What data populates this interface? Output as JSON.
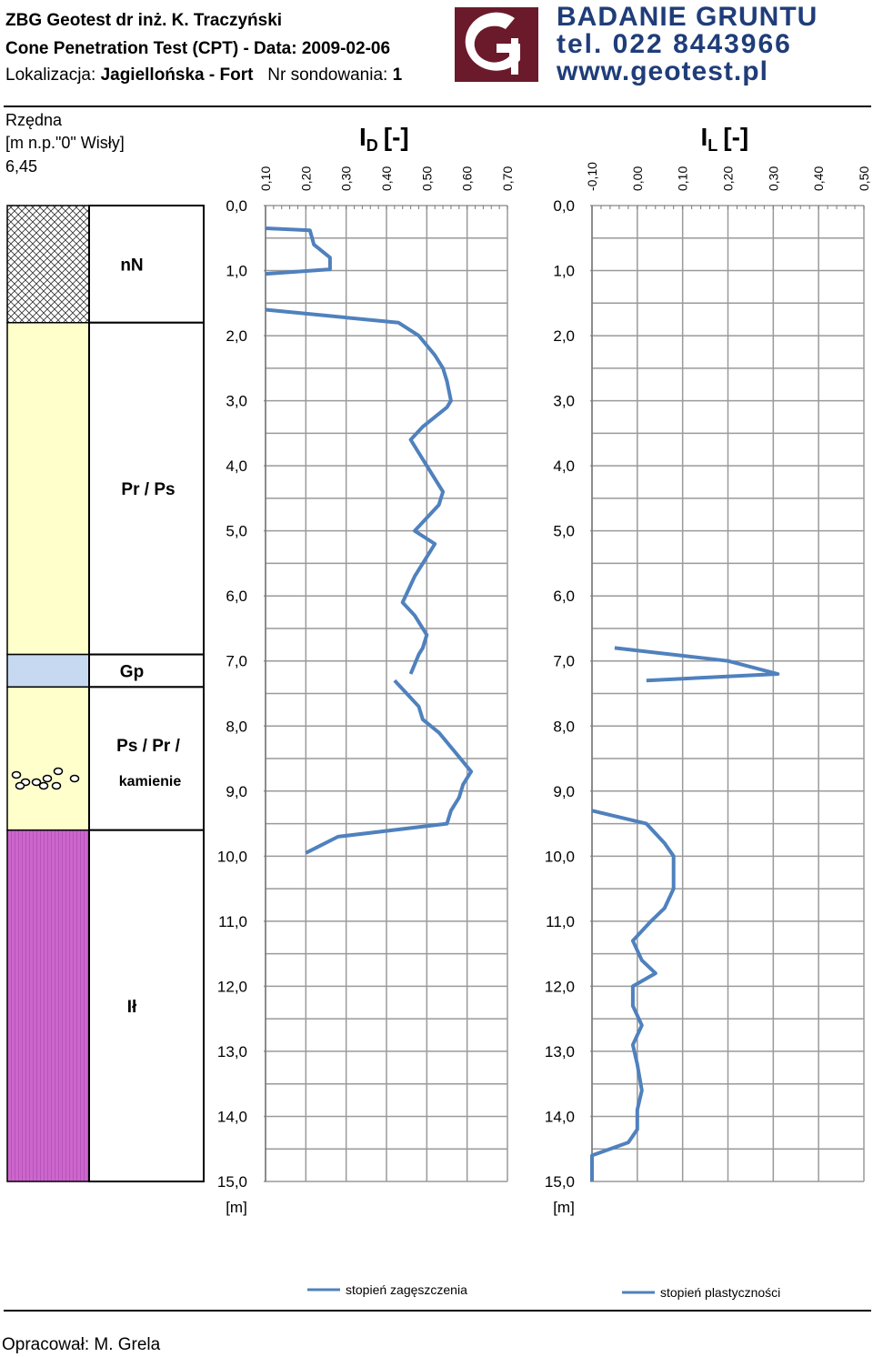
{
  "header": {
    "line1": "ZBG Geotest dr inż. K. Traczyński",
    "line2": "Cone Penetration Test (CPT)  -  Data: 2009-02-06",
    "line3_label": "Lokalizacja:",
    "line3_location": "Jagiellońska - Fort",
    "line3_probe_label": "Nr sondowania:",
    "line3_probe": "1"
  },
  "logo": {
    "line1": "BADANIE GRUNTU",
    "line2": "tel. 022 8443966",
    "line3": "www.geotest.pl",
    "box_color": "#6b1a2b",
    "text_color": "#1f3d79"
  },
  "elevation": {
    "label1": "Rzędna",
    "label2": "[m n.p.\"0\" Wisły]",
    "value": "6,45"
  },
  "layers": [
    {
      "label": "nN",
      "top": 0.0,
      "bottom": 1.8,
      "pattern": "crosshatch"
    },
    {
      "label": "Pr / Ps",
      "top": 1.8,
      "bottom": 6.9,
      "pattern": "plain-yellow"
    },
    {
      "label": "Gp",
      "top": 6.9,
      "bottom": 7.4,
      "pattern": "plain-blue"
    },
    {
      "label": "Ps / Pr /",
      "label2": "kamienie",
      "top": 7.4,
      "bottom": 9.6,
      "pattern": "yellow-stones"
    },
    {
      "label": "Ił",
      "top": 9.6,
      "bottom": 15.0,
      "pattern": "purple-hatch"
    }
  ],
  "layer_colors": {
    "yellow": "#ffffcc",
    "blue": "#c6d9f1",
    "purple": "#cc66cc",
    "line": "#4f81bd"
  },
  "chart_data": [
    {
      "type": "line",
      "title": "I D [-]",
      "title_main": "I",
      "title_sub": "D",
      "title_tail": "[-]",
      "xlim": [
        0.1,
        0.7
      ],
      "x_ticks": [
        "0,10",
        "0,20",
        "0,30",
        "0,40",
        "0,50",
        "0,60",
        "0,70"
      ],
      "ylim": [
        0,
        15
      ],
      "y_ticks": [
        "0,0",
        "1,0",
        "2,0",
        "3,0",
        "4,0",
        "5,0",
        "6,0",
        "7,0",
        "8,0",
        "9,0",
        "10,0",
        "11,0",
        "12,0",
        "13,0",
        "14,0",
        "15,0"
      ],
      "y_unit": "[m]",
      "series": [
        {
          "name": "stopień zagęszczenia",
          "segments": [
            [
              [
                0.1,
                0.35
              ],
              [
                0.21,
                0.38
              ],
              [
                0.22,
                0.6
              ],
              [
                0.26,
                0.8
              ],
              [
                0.26,
                0.98
              ],
              [
                0.1,
                1.05
              ]
            ],
            [
              [
                0.1,
                1.6
              ],
              [
                0.43,
                1.8
              ],
              [
                0.48,
                2.0
              ],
              [
                0.52,
                2.3
              ],
              [
                0.54,
                2.5
              ],
              [
                0.55,
                2.7
              ],
              [
                0.56,
                3.0
              ],
              [
                0.55,
                3.1
              ],
              [
                0.49,
                3.4
              ],
              [
                0.46,
                3.6
              ],
              [
                0.5,
                4.0
              ],
              [
                0.54,
                4.4
              ],
              [
                0.53,
                4.6
              ],
              [
                0.47,
                5.0
              ],
              [
                0.52,
                5.2
              ],
              [
                0.49,
                5.5
              ],
              [
                0.47,
                5.7
              ],
              [
                0.44,
                6.1
              ],
              [
                0.47,
                6.3
              ],
              [
                0.5,
                6.6
              ],
              [
                0.49,
                6.8
              ],
              [
                0.48,
                6.9
              ],
              [
                0.46,
                7.2
              ]
            ],
            [
              [
                0.42,
                7.3
              ],
              [
                0.48,
                7.7
              ],
              [
                0.49,
                7.9
              ],
              [
                0.53,
                8.1
              ],
              [
                0.57,
                8.4
              ],
              [
                0.61,
                8.7
              ],
              [
                0.59,
                8.9
              ],
              [
                0.58,
                9.1
              ],
              [
                0.56,
                9.3
              ],
              [
                0.55,
                9.5
              ],
              [
                0.28,
                9.7
              ],
              [
                0.2,
                9.95
              ]
            ]
          ]
        }
      ]
    },
    {
      "type": "line",
      "title": "I L [-]",
      "title_main": "I",
      "title_sub": "L",
      "title_tail": "[-]",
      "xlim": [
        -0.1,
        0.5
      ],
      "x_ticks": [
        "-0,10",
        "0,00",
        "0,10",
        "0,20",
        "0,30",
        "0,40",
        "0,50"
      ],
      "ylim": [
        0,
        15
      ],
      "y_ticks": [
        "0,0",
        "1,0",
        "2,0",
        "3,0",
        "4,0",
        "5,0",
        "6,0",
        "7,0",
        "8,0",
        "9,0",
        "10,0",
        "11,0",
        "12,0",
        "13,0",
        "14,0",
        "15,0"
      ],
      "y_unit": "[m]",
      "series": [
        {
          "name": "stopień plastyczności",
          "segments": [
            [
              [
                -0.05,
                6.8
              ],
              [
                0.2,
                7.0
              ],
              [
                0.31,
                7.2
              ],
              [
                0.02,
                7.3
              ]
            ],
            [
              [
                -0.1,
                9.3
              ],
              [
                0.02,
                9.5
              ],
              [
                0.06,
                9.8
              ],
              [
                0.08,
                10.0
              ],
              [
                0.08,
                10.2
              ],
              [
                0.08,
                10.5
              ],
              [
                0.06,
                10.8
              ],
              [
                0.03,
                11.0
              ],
              [
                -0.01,
                11.3
              ],
              [
                0.01,
                11.6
              ],
              [
                0.04,
                11.8
              ],
              [
                -0.01,
                12.0
              ],
              [
                -0.01,
                12.3
              ],
              [
                0.01,
                12.6
              ],
              [
                -0.01,
                12.9
              ],
              [
                0.0,
                13.2
              ],
              [
                0.01,
                13.6
              ],
              [
                0.0,
                13.9
              ],
              [
                0.0,
                14.2
              ],
              [
                -0.02,
                14.4
              ],
              [
                -0.1,
                14.6
              ],
              [
                -0.1,
                15.0
              ]
            ]
          ]
        }
      ]
    }
  ],
  "legend": {
    "entry1": "stopień zagęszczenia",
    "entry2": "stopień plastyczności"
  },
  "footer": {
    "prepared_by": "Opracował: M. Grela"
  }
}
